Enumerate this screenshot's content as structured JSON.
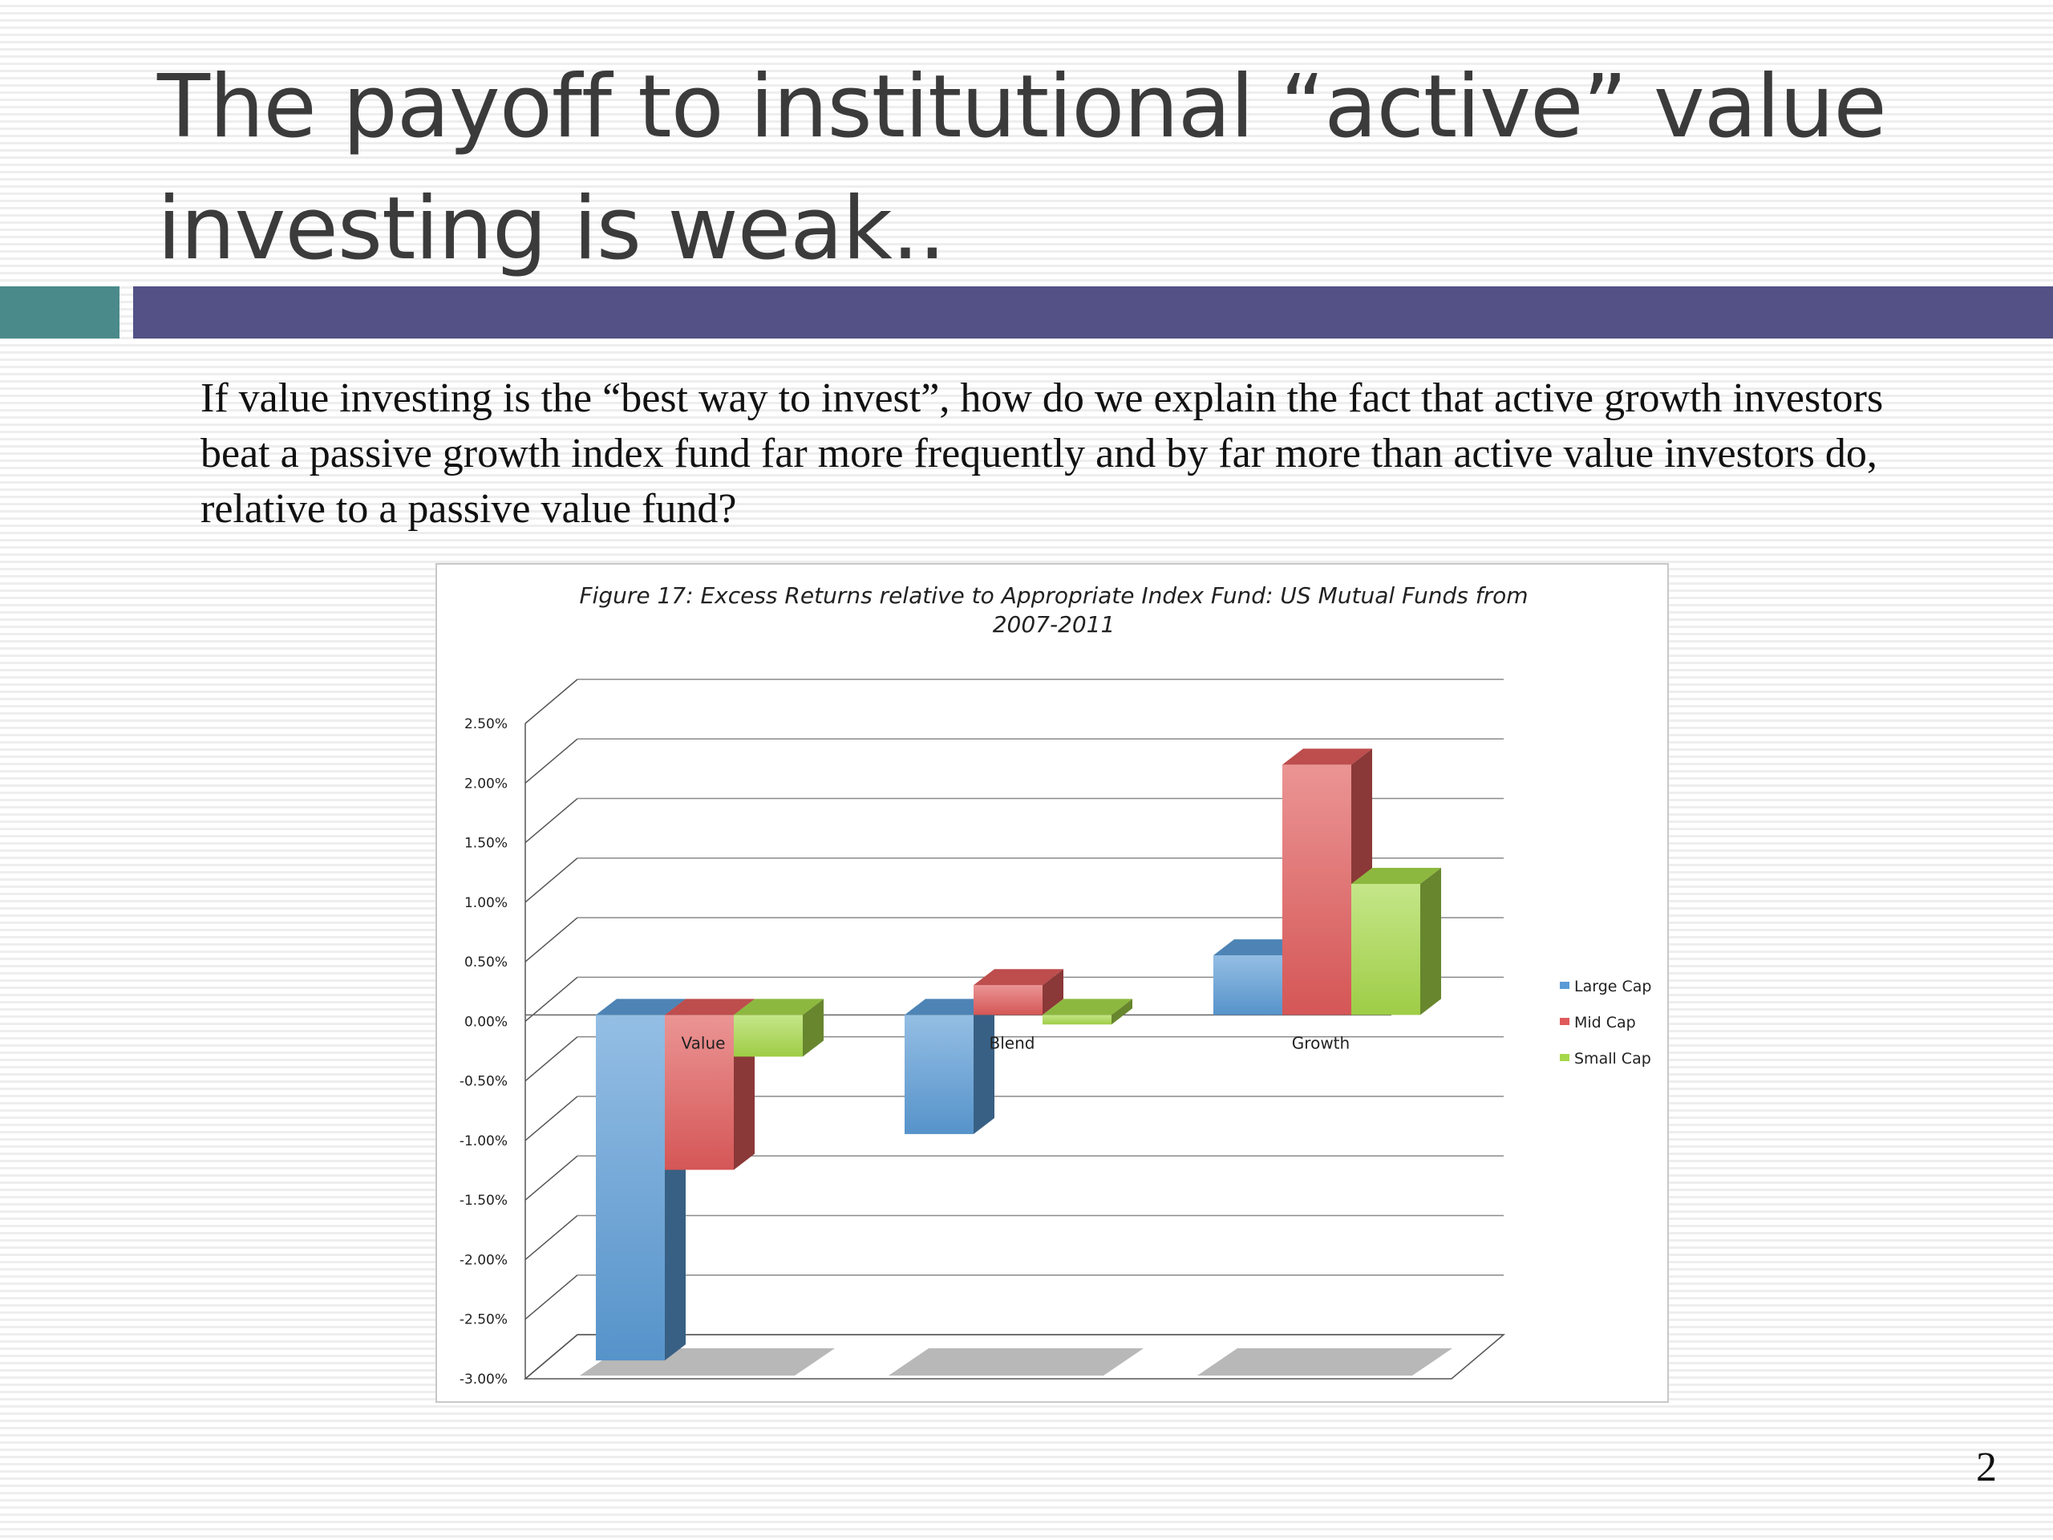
{
  "slide": {
    "title_line1": "The payoff to institutional “active” value",
    "title_line2": "investing is weak..",
    "body": "If value investing is the “best way to invest”, how do we explain the fact that active growth investors beat a passive growth index fund far more frequently and by far more than active value investors do, relative to a passive value fund?",
    "page_number": "2",
    "colors": {
      "accent": "#4a8a8a",
      "title_bar": "#535185",
      "title_text": "#3b3b3b"
    }
  },
  "chart_data": {
    "type": "bar",
    "title_line1": "Figure 17: Excess Returns relative to Appropriate Index Fund: US Mutual Funds from",
    "title_line2": "2007-2011",
    "categories": [
      "Value",
      "Blend",
      "Growth"
    ],
    "series": [
      {
        "name": "Large Cap",
        "values": [
          -2.9,
          -1.0,
          0.5
        ],
        "color": "#5b9bd5"
      },
      {
        "name": "Mid Cap",
        "values": [
          -1.3,
          0.25,
          2.1
        ],
        "color": "#e05a5a"
      },
      {
        "name": "Small Cap",
        "values": [
          -0.35,
          -0.08,
          1.1
        ],
        "color": "#a6d84a"
      }
    ],
    "ylim": [
      -3.0,
      2.5
    ],
    "yticks": [
      "2.50%",
      "2.00%",
      "1.50%",
      "1.00%",
      "0.50%",
      "0.00%",
      "-0.50%",
      "-1.00%",
      "-1.50%",
      "-2.00%",
      "-2.50%",
      "-3.00%"
    ],
    "ytick_values": [
      2.5,
      2.0,
      1.5,
      1.0,
      0.5,
      0.0,
      -0.5,
      -1.0,
      -1.5,
      -2.0,
      -2.5,
      -3.0
    ],
    "grid": true,
    "legend_position": "right",
    "style": "3d-clustered-column"
  }
}
